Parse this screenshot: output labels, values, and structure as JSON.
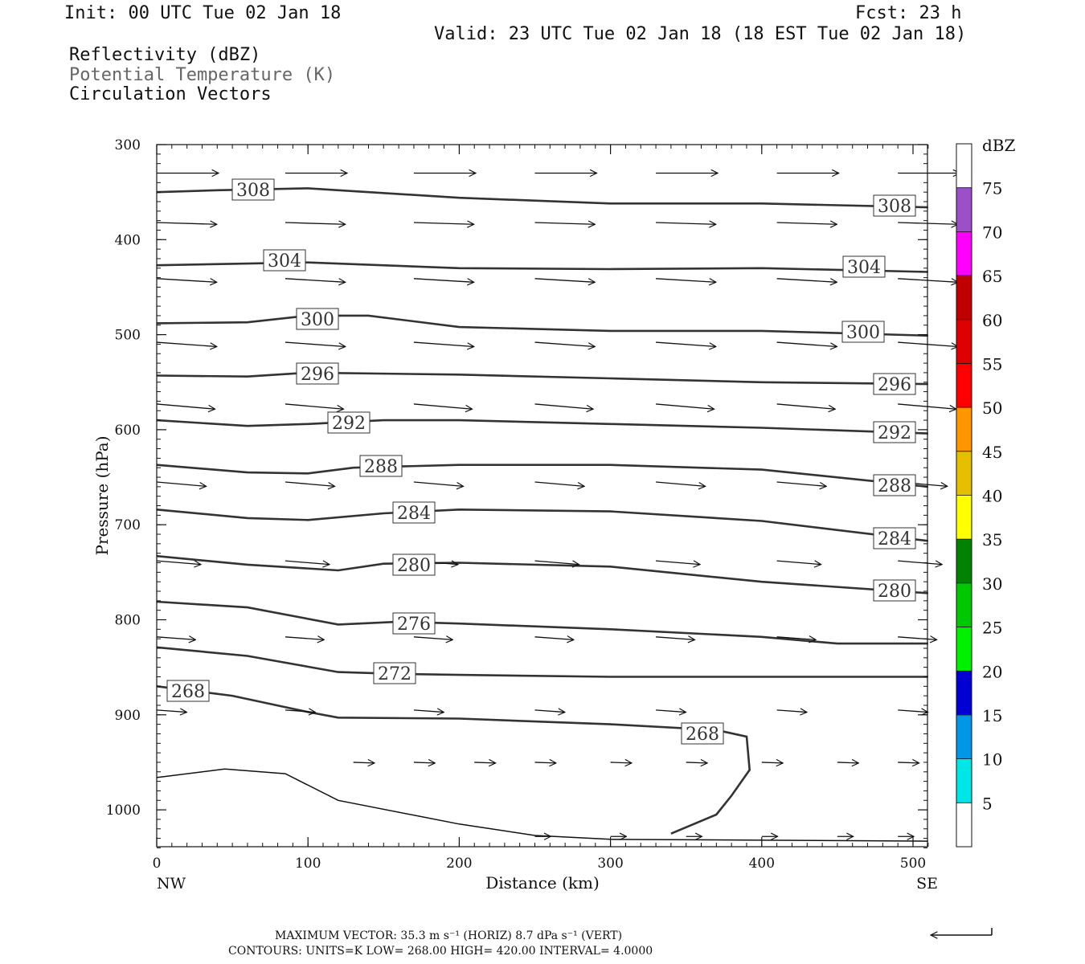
{
  "header": {
    "init": "Init: 00 UTC Tue 02 Jan 18",
    "fcst": "Fcst:   23 h",
    "valid": "Valid: 23 UTC Tue 02 Jan 18 (18 EST Tue 02 Jan 18)",
    "fields": [
      "Reflectivity (dBZ)",
      "Potential Temperature (K)",
      "Circulation Vectors"
    ]
  },
  "chart_data": {
    "type": "cross-section",
    "xlabel": "Distance (km)",
    "ylabel": "Pressure (hPa)",
    "xlim": [
      0,
      510
    ],
    "ylim": [
      300,
      1040
    ],
    "x_ticks": [
      0,
      100,
      200,
      300,
      400,
      500
    ],
    "y_ticks": [
      300,
      400,
      500,
      600,
      700,
      800,
      900,
      1000
    ],
    "x_end_labels": {
      "left": "NW",
      "right": "SE"
    },
    "colorbar": {
      "title": "dBZ",
      "labels": [
        5,
        10,
        15,
        20,
        25,
        30,
        35,
        40,
        45,
        50,
        55,
        60,
        65,
        70,
        75
      ],
      "colors": [
        "#ffffff",
        "#00e6e6",
        "#0096e6",
        "#0000d2",
        "#00f000",
        "#00c800",
        "#008200",
        "#ffff00",
        "#e6be00",
        "#ff9600",
        "#ff0000",
        "#dc0000",
        "#be0000",
        "#ff00ff",
        "#9b50c8",
        "#ffffff"
      ]
    },
    "contours": [
      {
        "label": "308",
        "points": [
          [
            0,
            350
          ],
          [
            40,
            348
          ],
          [
            100,
            346
          ],
          [
            200,
            356
          ],
          [
            300,
            362
          ],
          [
            400,
            362
          ],
          [
            510,
            366
          ]
        ]
      },
      {
        "label": "304",
        "points": [
          [
            0,
            427
          ],
          [
            100,
            424
          ],
          [
            200,
            430
          ],
          [
            300,
            431
          ],
          [
            400,
            430
          ],
          [
            510,
            434
          ]
        ]
      },
      {
        "label": "300",
        "points": [
          [
            0,
            488
          ],
          [
            60,
            487
          ],
          [
            100,
            480
          ],
          [
            140,
            480
          ],
          [
            200,
            492
          ],
          [
            300,
            496
          ],
          [
            400,
            496
          ],
          [
            510,
            501
          ]
        ]
      },
      {
        "label": "296",
        "points": [
          [
            0,
            543
          ],
          [
            60,
            544
          ],
          [
            100,
            540
          ],
          [
            200,
            542
          ],
          [
            300,
            546
          ],
          [
            400,
            550
          ],
          [
            510,
            552
          ]
        ]
      },
      {
        "label": "292",
        "points": [
          [
            0,
            590
          ],
          [
            60,
            596
          ],
          [
            100,
            594
          ],
          [
            150,
            590
          ],
          [
            200,
            590
          ],
          [
            300,
            594
          ],
          [
            400,
            598
          ],
          [
            510,
            604
          ]
        ]
      },
      {
        "label": "288",
        "points": [
          [
            0,
            637
          ],
          [
            60,
            645
          ],
          [
            100,
            646
          ],
          [
            130,
            640
          ],
          [
            200,
            637
          ],
          [
            300,
            637
          ],
          [
            400,
            642
          ],
          [
            510,
            660
          ]
        ]
      },
      {
        "label": "284",
        "points": [
          [
            0,
            684
          ],
          [
            60,
            693
          ],
          [
            100,
            695
          ],
          [
            150,
            688
          ],
          [
            200,
            684
          ],
          [
            300,
            686
          ],
          [
            400,
            696
          ],
          [
            510,
            717
          ]
        ]
      },
      {
        "label": "280",
        "points": [
          [
            0,
            733
          ],
          [
            60,
            742
          ],
          [
            120,
            748
          ],
          [
            150,
            741
          ],
          [
            200,
            740
          ],
          [
            300,
            744
          ],
          [
            400,
            760
          ],
          [
            510,
            772
          ]
        ]
      },
      {
        "label": "276",
        "points": [
          [
            0,
            781
          ],
          [
            60,
            787
          ],
          [
            120,
            805
          ],
          [
            160,
            802
          ],
          [
            200,
            804
          ],
          [
            300,
            810
          ],
          [
            400,
            818
          ],
          [
            450,
            825
          ],
          [
            510,
            825
          ]
        ]
      },
      {
        "label": "272",
        "points": [
          [
            0,
            829
          ],
          [
            60,
            838
          ],
          [
            120,
            855
          ],
          [
            160,
            857
          ],
          [
            200,
            858
          ],
          [
            300,
            860
          ],
          [
            400,
            860
          ],
          [
            510,
            860
          ]
        ]
      },
      {
        "label": "268",
        "points": [
          [
            0,
            870
          ],
          [
            50,
            880
          ],
          [
            100,
            897
          ],
          [
            120,
            903
          ],
          [
            200,
            904
          ],
          [
            300,
            910
          ],
          [
            370,
            916
          ],
          [
            390,
            923
          ],
          [
            392,
            958
          ],
          [
            380,
            985
          ],
          [
            370,
            1005
          ],
          [
            340,
            1025
          ]
        ]
      }
    ],
    "surface": [
      [
        0,
        966
      ],
      [
        45,
        957
      ],
      [
        85,
        962
      ],
      [
        120,
        990
      ],
      [
        200,
        1015
      ],
      [
        250,
        1027
      ],
      [
        300,
        1031
      ],
      [
        510,
        1033
      ]
    ],
    "vector_rows": [
      {
        "p": 330,
        "x": [
          0,
          85,
          170,
          250,
          330,
          410,
          490
        ],
        "u": 35,
        "w": 0
      },
      {
        "p": 382,
        "x": [
          0,
          85,
          170,
          250,
          330,
          410,
          490
        ],
        "u": 34,
        "w": 5
      },
      {
        "p": 441,
        "x": [
          0,
          85,
          170,
          250,
          330,
          410,
          490
        ],
        "u": 34,
        "w": 10
      },
      {
        "p": 508,
        "x": [
          0,
          85,
          170,
          250,
          330,
          410,
          490
        ],
        "u": 34,
        "w": 12
      },
      {
        "p": 573,
        "x": [
          0,
          85,
          170,
          250,
          330,
          410,
          490
        ],
        "u": 33,
        "w": 14
      },
      {
        "p": 655,
        "x": [
          0,
          85,
          170,
          250,
          330,
          410,
          490
        ],
        "u": 28,
        "w": 12
      },
      {
        "p": 738,
        "x": [
          0,
          85,
          170,
          250,
          330,
          410,
          490
        ],
        "u": 25,
        "w": 10
      },
      {
        "p": 818,
        "x": [
          0,
          85,
          170,
          250,
          330,
          410,
          490
        ],
        "u": 22,
        "w": 8
      },
      {
        "p": 895,
        "x": [
          0,
          85,
          170,
          250,
          330,
          410,
          490
        ],
        "u": 17,
        "w": 6
      },
      {
        "p": 950,
        "x": [
          130,
          170,
          210,
          250,
          300,
          350,
          400,
          450,
          490
        ],
        "u": 12,
        "w": 2
      },
      {
        "p": 1028,
        "x": [
          250,
          300,
          350,
          400,
          450,
          490
        ],
        "u": 9,
        "w": 0
      }
    ]
  },
  "footer": {
    "max_vector": "MAXIMUM VECTOR:  35.3 m s⁻¹ (HORIZ)           8.7 dPa s⁻¹ (VERT)",
    "contours": "CONTOURS:  UNITS=K   LOW=   268.00        HIGH=   420.00        INTERVAL=      4.0000"
  }
}
